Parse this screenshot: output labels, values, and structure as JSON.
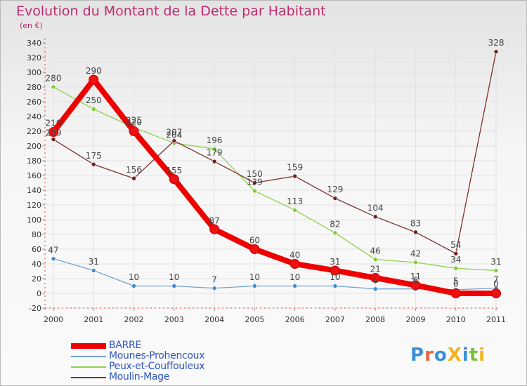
{
  "title": "Evolution du Montant de la Dette par Habitant",
  "subtitle": "(en €)",
  "logo_text": "ProXiti",
  "logo_colors": [
    "#3c8fd6",
    "#e8623a",
    "#3c8fd6",
    "#f2b21d",
    "#3c8fd6",
    "#7abf3a",
    "#f2b21d"
  ],
  "chart_data": {
    "type": "line",
    "x": [
      "2000",
      "2001",
      "2002",
      "2003",
      "2004",
      "2005",
      "2006",
      "2007",
      "2008",
      "2009",
      "2010",
      "2011"
    ],
    "ylim": [
      -20,
      340
    ],
    "yticks": [
      -20,
      0,
      20,
      40,
      60,
      80,
      100,
      120,
      140,
      160,
      180,
      200,
      220,
      240,
      260,
      280,
      300,
      320,
      340
    ],
    "grid": true,
    "legend_position": "bottom-left",
    "series": [
      {
        "name": "BARRE",
        "color": "#ee0000",
        "marker_color": "#ee1111",
        "width": 8,
        "values": [
          219,
          290,
          220,
          155,
          87,
          60,
          40,
          31,
          21,
          11,
          0,
          0
        ]
      },
      {
        "name": "Mounes-Prohencoux",
        "color": "#6fa3d3",
        "marker_color": "#3d8bd0",
        "width": 1.3,
        "values": [
          47,
          31,
          10,
          10,
          7,
          10,
          10,
          10,
          6,
          6,
          5,
          7
        ]
      },
      {
        "name": "Peux-et-Couffouleux",
        "color": "#8fd14f",
        "marker_color": "#7fcc3a",
        "width": 1.3,
        "values": [
          280,
          250,
          225,
          204,
          196,
          139,
          113,
          82,
          46,
          42,
          34,
          31
        ]
      },
      {
        "name": "Moulin-Mage",
        "color": "#7d2f2f",
        "marker_color": "#6e1e1e",
        "width": 1.3,
        "values": [
          209,
          175,
          156,
          207,
          179,
          150,
          159,
          129,
          104,
          83,
          54,
          328
        ]
      }
    ],
    "labels": [
      {
        "x": "2000",
        "y": 227,
        "text": "219"
      },
      {
        "x": "2000",
        "y": 214,
        "text": "209"
      },
      {
        "x": "2000",
        "y": 288,
        "text": "280"
      },
      {
        "x": "2000",
        "y": 55,
        "text": "47"
      },
      {
        "x": "2001",
        "y": 298,
        "text": "290"
      },
      {
        "x": "2001",
        "y": 258,
        "text": "250"
      },
      {
        "x": "2001",
        "y": 183,
        "text": "175"
      },
      {
        "x": "2001",
        "y": 39,
        "text": "31"
      },
      {
        "x": "2002",
        "y": 231,
        "text": "225"
      },
      {
        "x": "2002",
        "y": 228,
        "text": "220"
      },
      {
        "x": "2002",
        "y": 164,
        "text": "156"
      },
      {
        "x": "2002",
        "y": 18,
        "text": "10"
      },
      {
        "x": "2003",
        "y": 215,
        "text": "207"
      },
      {
        "x": "2003",
        "y": 211,
        "text": "204"
      },
      {
        "x": "2003",
        "y": 163,
        "text": "155"
      },
      {
        "x": "2003",
        "y": 18,
        "text": "10"
      },
      {
        "x": "2004",
        "y": 204,
        "text": "196"
      },
      {
        "x": "2004",
        "y": 187,
        "text": "179"
      },
      {
        "x": "2004",
        "y": 95,
        "text": "87"
      },
      {
        "x": "2004",
        "y": 15,
        "text": "7"
      },
      {
        "x": "2005",
        "y": 158,
        "text": "150"
      },
      {
        "x": "2005",
        "y": 147,
        "text": "139"
      },
      {
        "x": "2005",
        "y": 68,
        "text": "60"
      },
      {
        "x": "2005",
        "y": 18,
        "text": "10"
      },
      {
        "x": "2006",
        "y": 167,
        "text": "159"
      },
      {
        "x": "2006",
        "y": 121,
        "text": "113"
      },
      {
        "x": "2006",
        "y": 48,
        "text": "40"
      },
      {
        "x": "2006",
        "y": 18,
        "text": "10"
      },
      {
        "x": "2007",
        "y": 137,
        "text": "129"
      },
      {
        "x": "2007",
        "y": 90,
        "text": "82"
      },
      {
        "x": "2007",
        "y": 39,
        "text": "31"
      },
      {
        "x": "2007",
        "y": 18,
        "text": "10"
      },
      {
        "x": "2008",
        "y": 112,
        "text": "104"
      },
      {
        "x": "2008",
        "y": 54,
        "text": "46"
      },
      {
        "x": "2008",
        "y": 29,
        "text": "21"
      },
      {
        "x": "2008",
        "y": 14,
        "text": "6"
      },
      {
        "x": "2009",
        "y": 91,
        "text": "83"
      },
      {
        "x": "2009",
        "y": 50,
        "text": "42"
      },
      {
        "x": "2009",
        "y": 19,
        "text": "11"
      },
      {
        "x": "2009",
        "y": 14,
        "text": "6"
      },
      {
        "x": "2010",
        "y": 62,
        "text": "54"
      },
      {
        "x": "2010",
        "y": 42,
        "text": "34"
      },
      {
        "x": "2010",
        "y": 13,
        "text": "5"
      },
      {
        "x": "2010",
        "y": 9,
        "text": "0"
      },
      {
        "x": "2011",
        "y": 336,
        "text": "328"
      },
      {
        "x": "2011",
        "y": 39,
        "text": "31"
      },
      {
        "x": "2011",
        "y": 15,
        "text": "7"
      },
      {
        "x": "2011",
        "y": 9,
        "text": "0"
      }
    ]
  }
}
